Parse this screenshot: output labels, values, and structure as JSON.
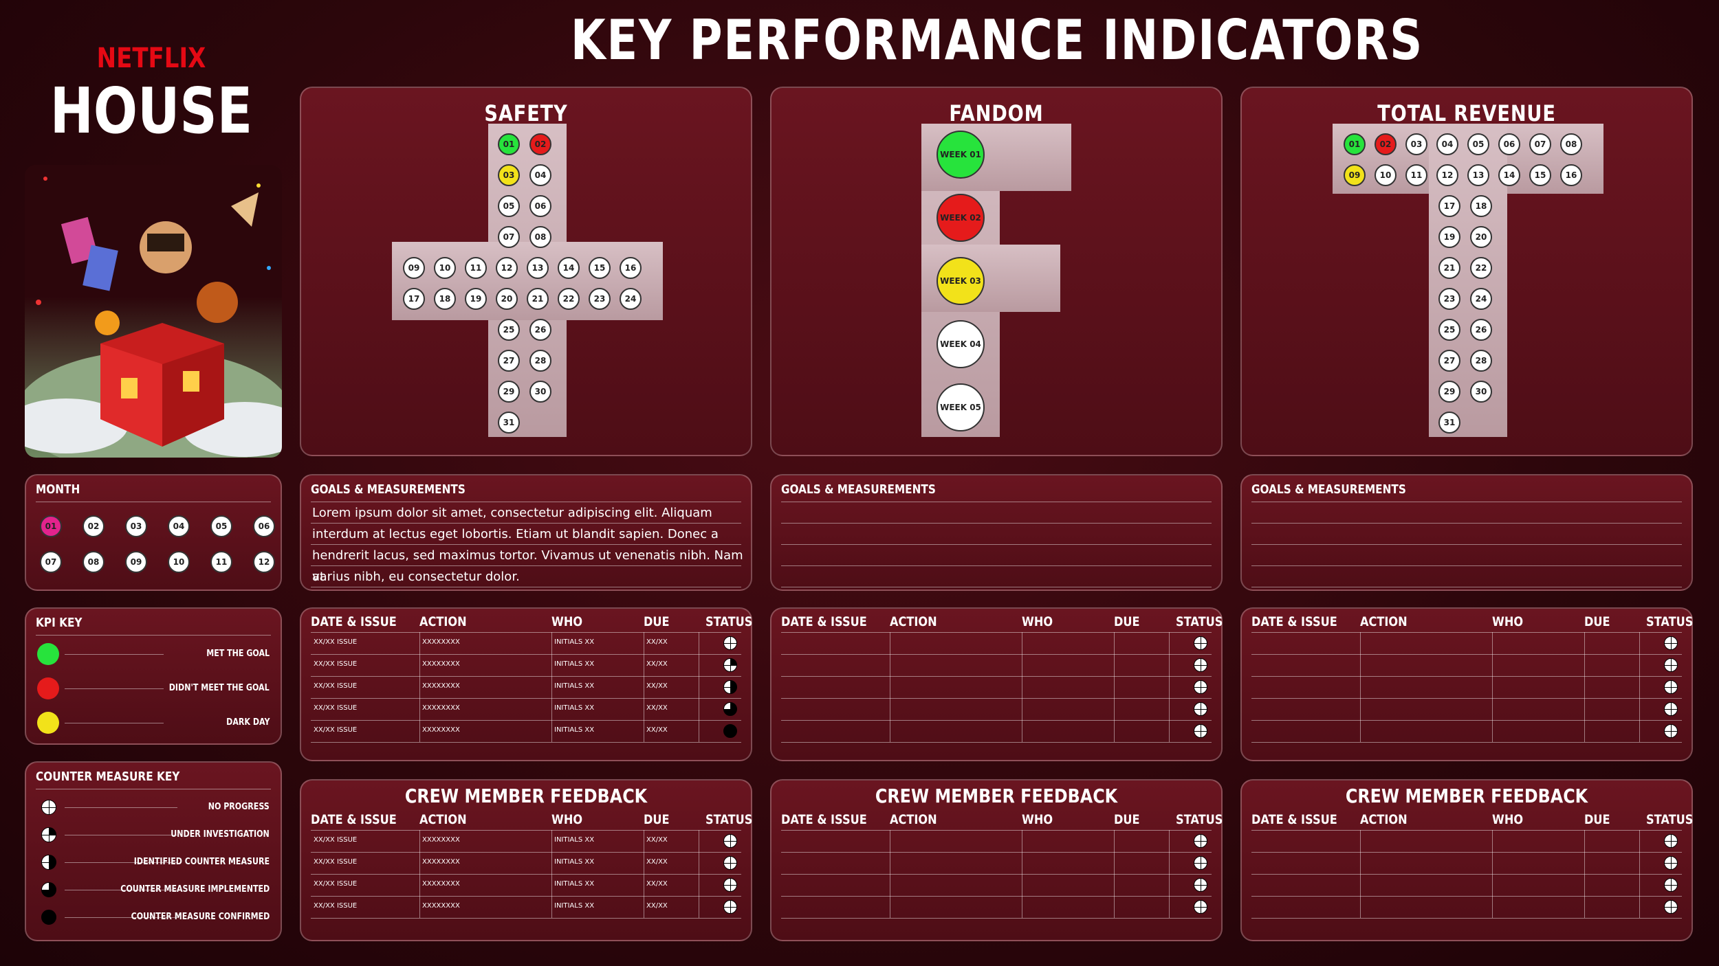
{
  "header": {
    "title": "KEY PERFORMANCE INDICATORS"
  },
  "brand": {
    "netflix": "NETFLIX",
    "house": "HOUSE"
  },
  "colors": {
    "green": "#27e33c",
    "red": "#e51b1b",
    "yellow": "#f2e21a",
    "magenta": "#e3238d"
  },
  "month": {
    "title": "MONTH",
    "items": [
      "01",
      "02",
      "03",
      "04",
      "05",
      "06",
      "07",
      "08",
      "09",
      "10",
      "11",
      "12"
    ],
    "selected": "01"
  },
  "kpi_key": {
    "title": "KPI KEY",
    "items": [
      {
        "label": "MET THE GOAL",
        "color": "green"
      },
      {
        "label": "DIDN'T MEET THE GOAL",
        "color": "red"
      },
      {
        "label": "DARK DAY",
        "color": "yellow"
      }
    ]
  },
  "counter_key": {
    "title": "COUNTER MEASURE KEY",
    "items": [
      {
        "label": "NO PROGRESS",
        "state": "q0"
      },
      {
        "label": "UNDER INVESTIGATION",
        "state": "q1"
      },
      {
        "label": "IDENTIFIED COUNTER MEASURE",
        "state": "q2"
      },
      {
        "label": "COUNTER MEASURE IMPLEMENTED",
        "state": "q3"
      },
      {
        "label": "COUNTER MEASURE CONFIRMED",
        "state": "q4"
      }
    ]
  },
  "kpis": [
    {
      "title": "SAFETY",
      "days": [
        "01",
        "02",
        "03",
        "04",
        "05",
        "06",
        "07",
        "08",
        "09",
        "10",
        "11",
        "12",
        "13",
        "14",
        "15",
        "16",
        "17",
        "18",
        "19",
        "20",
        "21",
        "22",
        "23",
        "24",
        "25",
        "26",
        "27",
        "28",
        "29",
        "30",
        "31"
      ],
      "day_colors": {
        "01": "green",
        "02": "red",
        "03": "yellow"
      }
    },
    {
      "title": "FANDOM",
      "weeks": [
        "WEEK 01",
        "WEEK 02",
        "WEEK 03",
        "WEEK 04",
        "WEEK 05"
      ],
      "week_colors": [
        "green",
        "red",
        "yellow",
        "white",
        "white"
      ]
    },
    {
      "title": "TOTAL REVENUE",
      "days": [
        "01",
        "02",
        "03",
        "04",
        "05",
        "06",
        "07",
        "08",
        "09",
        "10",
        "11",
        "12",
        "13",
        "14",
        "15",
        "16",
        "17",
        "18",
        "19",
        "20",
        "21",
        "22",
        "23",
        "24",
        "25",
        "26",
        "27",
        "28",
        "29",
        "30",
        "31"
      ],
      "day_colors": {
        "01": "green",
        "02": "red",
        "09": "yellow"
      }
    }
  ],
  "goals": [
    {
      "title": "GOALS & MEASUREMENTS",
      "text": [
        "Lorem ipsum dolor sit amet, consectetur adipiscing elit. Aliquam",
        "interdum at lectus eget lobortis. Etiam ut blandit sapien. Donec a",
        "hendrerit lacus, sed maximus tortor. Vivamus ut venenatis nibh. Nam at",
        "varius nibh, eu consectetur dolor."
      ]
    },
    {
      "title": "GOALS & MEASUREMENTS",
      "text": []
    },
    {
      "title": "GOALS & MEASUREMENTS",
      "text": []
    }
  ],
  "table_headers": [
    "DATE & ISSUE",
    "ACTION",
    "WHO",
    "DUE",
    "STATUS"
  ],
  "issue_tables": [
    {
      "rows": [
        [
          "XX/XX ISSUE",
          "XXXXXXXX",
          "INITIALS XX",
          "XX/XX",
          "q0"
        ],
        [
          "XX/XX ISSUE",
          "XXXXXXXX",
          "INITIALS XX",
          "XX/XX",
          "q1"
        ],
        [
          "XX/XX ISSUE",
          "XXXXXXXX",
          "INITIALS XX",
          "XX/XX",
          "q2"
        ],
        [
          "XX/XX ISSUE",
          "XXXXXXXX",
          "INITIALS XX",
          "XX/XX",
          "q3"
        ],
        [
          "XX/XX ISSUE",
          "XXXXXXXX",
          "INITIALS XX",
          "XX/XX",
          "q4"
        ]
      ]
    },
    {
      "rows": [
        [
          "",
          "",
          "",
          "",
          "q0"
        ],
        [
          "",
          "",
          "",
          "",
          "q0"
        ],
        [
          "",
          "",
          "",
          "",
          "q0"
        ],
        [
          "",
          "",
          "",
          "",
          "q0"
        ],
        [
          "",
          "",
          "",
          "",
          "q0"
        ]
      ]
    },
    {
      "rows": [
        [
          "",
          "",
          "",
          "",
          "q0"
        ],
        [
          "",
          "",
          "",
          "",
          "q0"
        ],
        [
          "",
          "",
          "",
          "",
          "q0"
        ],
        [
          "",
          "",
          "",
          "",
          "q0"
        ],
        [
          "",
          "",
          "",
          "",
          "q0"
        ]
      ]
    }
  ],
  "feedback": [
    {
      "title": "CREW MEMBER FEEDBACK",
      "rows": [
        [
          "XX/XX ISSUE",
          "XXXXXXXX",
          "INITIALS XX",
          "XX/XX",
          "q0"
        ],
        [
          "XX/XX ISSUE",
          "XXXXXXXX",
          "INITIALS XX",
          "XX/XX",
          "q0"
        ],
        [
          "XX/XX ISSUE",
          "XXXXXXXX",
          "INITIALS XX",
          "XX/XX",
          "q0"
        ],
        [
          "XX/XX ISSUE",
          "XXXXXXXX",
          "INITIALS XX",
          "XX/XX",
          "q0"
        ]
      ]
    },
    {
      "title": "CREW MEMBER FEEDBACK",
      "rows": [
        [
          "",
          "",
          "",
          "",
          "q0"
        ],
        [
          "",
          "",
          "",
          "",
          "q0"
        ],
        [
          "",
          "",
          "",
          "",
          "q0"
        ],
        [
          "",
          "",
          "",
          "",
          "q0"
        ]
      ]
    },
    {
      "title": "CREW MEMBER FEEDBACK",
      "rows": [
        [
          "",
          "",
          "",
          "",
          "q0"
        ],
        [
          "",
          "",
          "",
          "",
          "q0"
        ],
        [
          "",
          "",
          "",
          "",
          "q0"
        ],
        [
          "",
          "",
          "",
          "",
          "q0"
        ]
      ]
    }
  ]
}
